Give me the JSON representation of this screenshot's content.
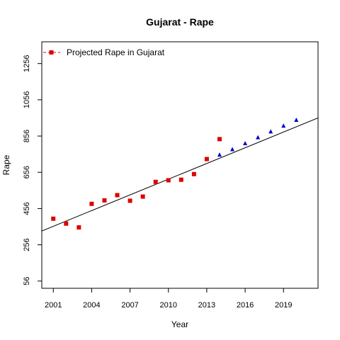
{
  "chart_data": {
    "type": "scatter",
    "title": "Gujarat  -  Rape",
    "xlabel": "Year",
    "ylabel": "Rape",
    "xlim": [
      2000.1,
      2021.7
    ],
    "ylim": [
      16,
      1376
    ],
    "xticks": [
      2001,
      2004,
      2007,
      2010,
      2013,
      2016,
      2019
    ],
    "yticks": [
      56,
      256,
      456,
      656,
      856,
      1056,
      1256
    ],
    "legend": {
      "label": "Projected Rape  in  Gujarat",
      "position": "top-left"
    },
    "series": [
      {
        "name": "Projected Rape  in  Gujarat",
        "marker": "square",
        "color": "#dd0000",
        "x": [
          2001,
          2002,
          2003,
          2004,
          2005,
          2006,
          2007,
          2008,
          2009,
          2010,
          2011,
          2012,
          2013,
          2014
        ],
        "y": [
          400,
          373,
          352,
          482,
          501,
          530,
          499,
          522,
          603,
          612,
          615,
          646,
          729,
          839
        ]
      },
      {
        "marker": "triangle",
        "color": "#0000cc",
        "x": [
          2014,
          2015,
          2016,
          2017,
          2018,
          2019,
          2020
        ],
        "y": [
          752,
          782,
          815,
          848,
          880,
          912,
          944
        ]
      }
    ],
    "trendline": {
      "x": [
        2000.1,
        2021.7
      ],
      "y": [
        332,
        956
      ],
      "color": "#000000"
    }
  }
}
